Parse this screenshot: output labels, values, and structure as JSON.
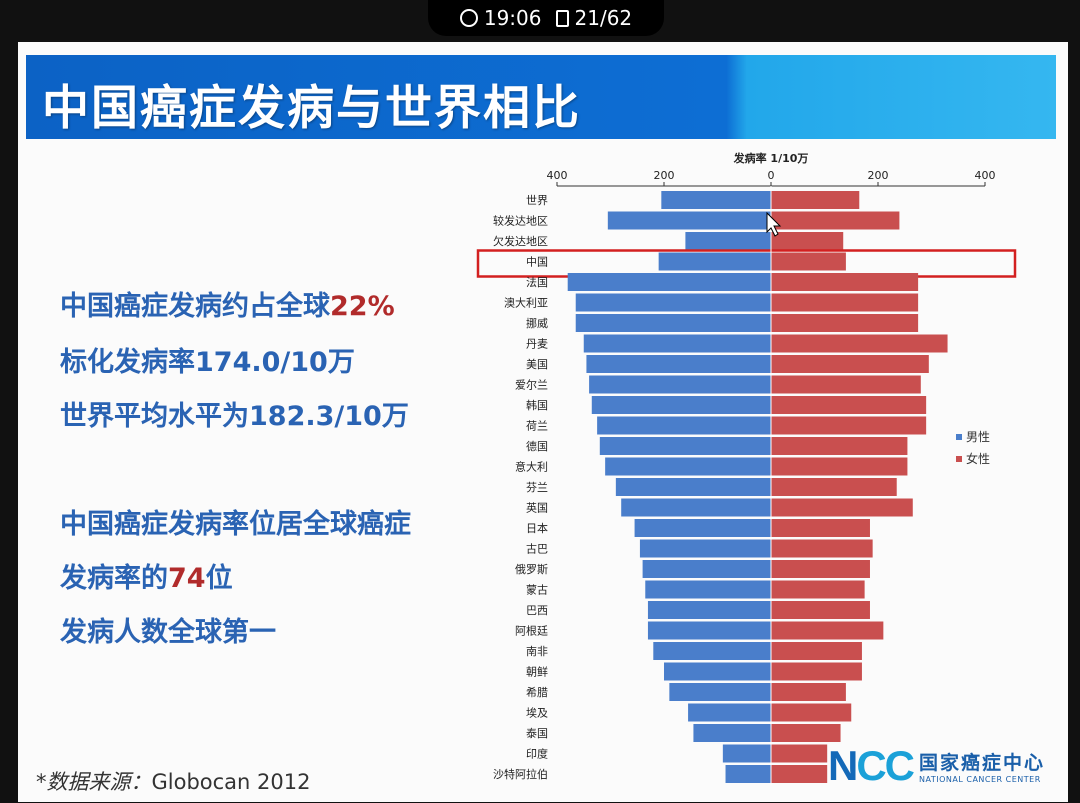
{
  "status_bar": {
    "time": "19:06",
    "page": "21/62"
  },
  "slide": {
    "title": "中国癌症发病与世界相比",
    "stats": [
      {
        "text": "中国癌症发病约占全球",
        "highlight": "22%"
      },
      {
        "text": "标化发病率174.0/10万",
        "highlight": ""
      },
      {
        "text": "世界平均水平为182.3/10万",
        "highlight": ""
      },
      {
        "text": "中国癌症发病率位居全球癌症",
        "highlight": ""
      },
      {
        "text": "发病率的",
        "highlight": "74",
        "suffix": "位"
      },
      {
        "text": "发病人数全球第一",
        "highlight": ""
      }
    ],
    "source_label": "*数据来源：",
    "source_value": "Globocan 2012",
    "logo": {
      "mark_n": "N",
      "mark_cc": "CC",
      "name_cn": "国家癌症中心",
      "name_en": "NATIONAL CANCER CENTER"
    }
  },
  "colors": {
    "male": "#4a7ecb",
    "female": "#c94f4f",
    "highlight_box": "#d32020",
    "text_blue": "#2a63b3",
    "accent_red": "#b12b2b"
  },
  "chart_data": {
    "type": "bar",
    "orientation": "horizontal-butterfly",
    "title": "发病率 1/10万",
    "xlim": [
      -400,
      400
    ],
    "xticks": [
      400,
      200,
      0,
      200,
      400
    ],
    "highlight_category": "中国",
    "categories": [
      "世界",
      "较发达地区",
      "欠发达地区",
      "中国",
      "法国",
      "澳大利亚",
      "挪威",
      "丹麦",
      "美国",
      "爱尔兰",
      "韩国",
      "荷兰",
      "德国",
      "意大利",
      "芬兰",
      "英国",
      "日本",
      "古巴",
      "俄罗斯",
      "蒙古",
      "巴西",
      "阿根廷",
      "南非",
      "朝鲜",
      "希腊",
      "埃及",
      "泰国",
      "印度",
      "沙特阿拉伯"
    ],
    "series": [
      {
        "name": "男性",
        "values": [
          205,
          305,
          160,
          210,
          380,
          365,
          365,
          350,
          345,
          340,
          335,
          325,
          320,
          310,
          290,
          280,
          255,
          245,
          240,
          235,
          230,
          230,
          220,
          200,
          190,
          155,
          145,
          90,
          85
        ]
      },
      {
        "name": "女性",
        "values": [
          165,
          240,
          135,
          140,
          275,
          275,
          275,
          330,
          295,
          280,
          290,
          290,
          255,
          255,
          235,
          265,
          185,
          190,
          185,
          175,
          185,
          210,
          170,
          170,
          140,
          150,
          130,
          105,
          105
        ]
      }
    ],
    "legend_position": "right"
  }
}
